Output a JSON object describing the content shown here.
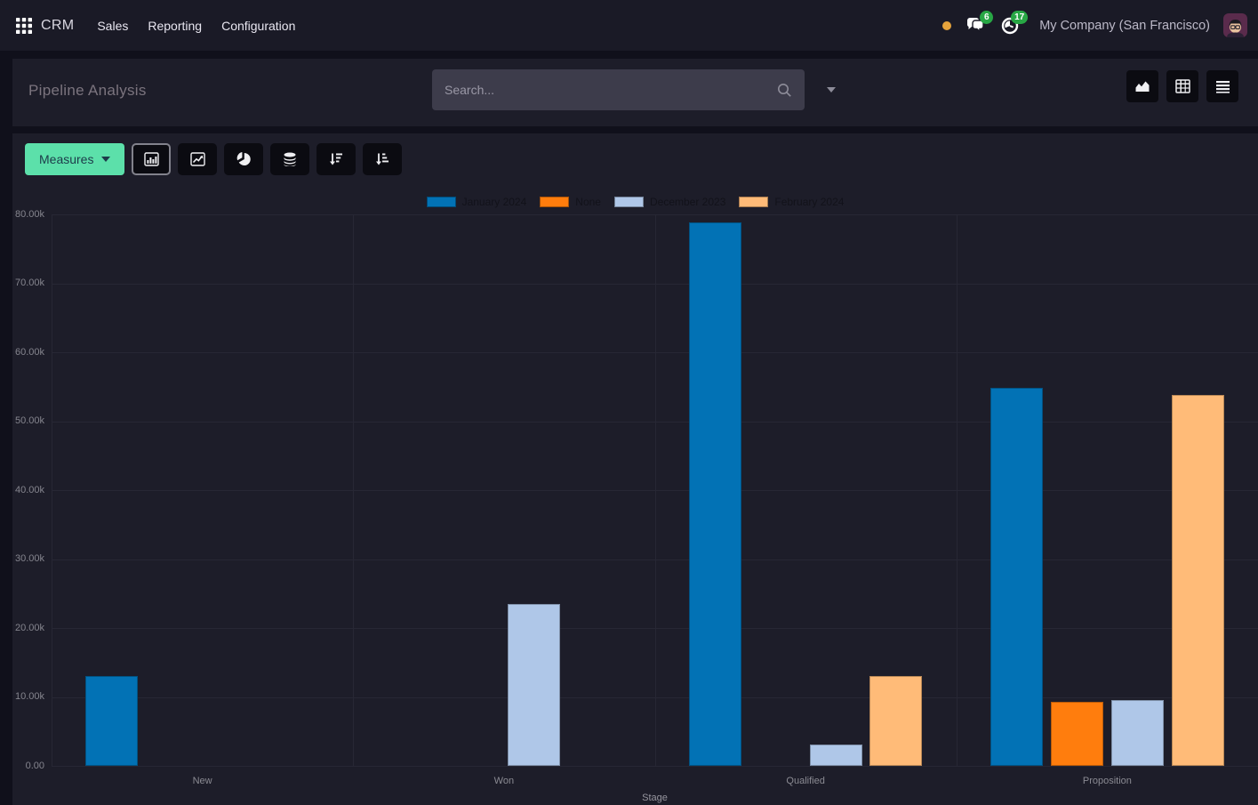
{
  "nav": {
    "app_name": "CRM",
    "menus": [
      "Sales",
      "Reporting",
      "Configuration"
    ],
    "systray": {
      "message_count": "6",
      "activity_count": "17",
      "company": "My Company (San Francisco)"
    },
    "icons": [
      "apps-grid-icon",
      "notification-dot",
      "messages-icon",
      "activity-clock-icon",
      "user-avatar"
    ]
  },
  "control_panel": {
    "title": "Pipeline Analysis",
    "search_placeholder": "Search...",
    "view_switcher_icons": [
      "area-chart-icon",
      "pivot-view-icon",
      "list-view-icon"
    ]
  },
  "toolbar": {
    "measures_label": "Measures",
    "chart_buttons": [
      "bar-chart",
      "line-chart",
      "pie-chart",
      "stacked",
      "sort-descending",
      "sort-ascending"
    ],
    "active_button": "bar-chart"
  },
  "chart_data": {
    "type": "bar",
    "title": "",
    "xlabel": "Stage",
    "ylabel": "",
    "categories": [
      "New",
      "Won",
      "Qualified",
      "Proposition"
    ],
    "series": [
      {
        "name": "January 2024",
        "color": "#0272b5",
        "values": [
          13000,
          null,
          78800,
          54800
        ]
      },
      {
        "name": "None",
        "color": "#ff7d0d",
        "values": [
          null,
          null,
          null,
          9250
        ]
      },
      {
        "name": "December 2023",
        "color": "#afc7e8",
        "values": [
          null,
          23500,
          3150,
          9600
        ]
      },
      {
        "name": "February 2024",
        "color": "#ffbb78",
        "values": [
          null,
          null,
          13000,
          53800
        ]
      }
    ],
    "ylim": [
      0,
      80000
    ],
    "ytick_labels": [
      "80.00k",
      "70.00k",
      "60.00k",
      "50.00k",
      "40.00k",
      "30.00k",
      "20.00k",
      "10.00k",
      "0.00"
    ],
    "ytick_values": [
      80000,
      70000,
      60000,
      50000,
      40000,
      30000,
      20000,
      10000,
      0
    ],
    "legend_position": "top",
    "grid": true
  },
  "colors": {
    "accent_button": "#5ce0aa",
    "badge": "#28a745",
    "notification_dot": "#e5a33c",
    "panel_bg": "#1d1d29",
    "navbar_bg": "#1a1a26"
  }
}
